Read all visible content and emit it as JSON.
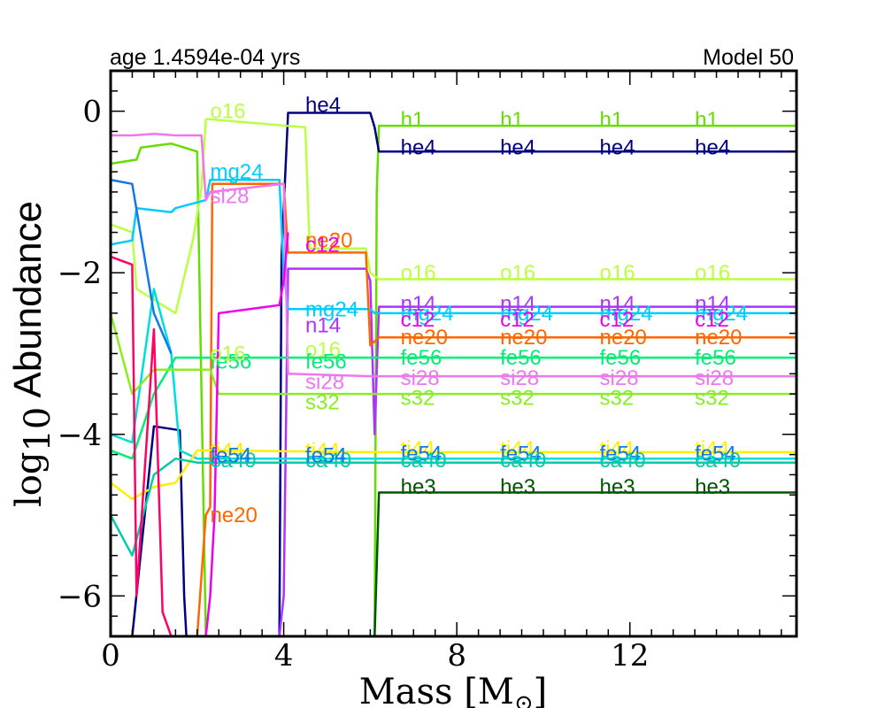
{
  "header": {
    "left": "age 1.4594e-04 yrs",
    "right": "Model 50"
  },
  "chart_data": {
    "type": "line",
    "xlabel": "Mass [M",
    "xlabel_sub": "⊙",
    "xlabel_close": "]",
    "ylabel_prefix": "log",
    "ylabel_sub": "10",
    "ylabel_word": "Abundance",
    "xlim": [
      0,
      15.85
    ],
    "ylim": [
      -6.5,
      0.5
    ],
    "xticks": [
      0,
      4,
      8,
      12
    ],
    "xtick_labels": [
      "0",
      "4",
      "8",
      "12"
    ],
    "yticks": [
      0,
      -2,
      -4,
      -6
    ],
    "ytick_labels": [
      "0",
      "−2",
      "−4",
      "−6"
    ],
    "grid": false,
    "label_positions": [
      6.7,
      9.0,
      11.3,
      13.5
    ],
    "series": [
      {
        "name": "h1",
        "color": "#66dd00",
        "x": [
          0.0,
          0.6,
          0.7,
          1.4,
          2.0,
          2.2,
          2.5,
          3.9,
          4.0,
          6.0,
          6.1,
          6.15,
          6.2,
          15.85
        ],
        "y": [
          -0.65,
          -0.6,
          -0.45,
          -0.4,
          -0.5,
          -6.5,
          -6.5,
          -6.5,
          -6.5,
          -6.5,
          -6.5,
          -1.0,
          -0.18,
          -0.18
        ]
      },
      {
        "name": "he4",
        "color": "#000080",
        "x": [
          0.0,
          0.5,
          1.0,
          1.6,
          1.7,
          1.75,
          3.8,
          3.9,
          3.95,
          4.1,
          5.0,
          6.0,
          6.1,
          6.2,
          15.85
        ],
        "y": [
          -6.5,
          -6.5,
          -3.9,
          -3.95,
          -6.0,
          -6.5,
          -6.5,
          -6.5,
          -1.8,
          -0.02,
          -0.02,
          -0.02,
          -0.2,
          -0.5,
          -0.5
        ]
      },
      {
        "name": "o16",
        "color": "#bbff44",
        "x": [
          0.0,
          0.5,
          0.6,
          1.5,
          1.9,
          2.1,
          2.2,
          2.3,
          4.5,
          4.6,
          5.9,
          6.0,
          6.2,
          15.85
        ],
        "y": [
          -1.4,
          -1.5,
          -2.2,
          -2.5,
          -1.6,
          -0.95,
          -0.1,
          -0.1,
          -0.2,
          -1.7,
          -1.7,
          -2.0,
          -2.08,
          -2.08
        ]
      },
      {
        "name": "n14",
        "color": "#aa33ff",
        "x": [
          0.0,
          3.9,
          4.0,
          4.1,
          5.9,
          6.0,
          6.1,
          6.2,
          15.85
        ],
        "y": [
          -6.5,
          -6.5,
          -6.0,
          -1.95,
          -1.95,
          -2.1,
          -4.0,
          -2.42,
          -2.42
        ]
      },
      {
        "name": "mg24",
        "color": "#00ccff",
        "x": [
          0.0,
          0.5,
          0.6,
          1.4,
          1.5,
          2.2,
          2.3,
          3.9,
          4.0,
          4.1,
          6.0,
          6.1,
          15.85
        ],
        "y": [
          -1.65,
          -1.6,
          -1.2,
          -1.25,
          -1.2,
          -1.1,
          -0.85,
          -0.85,
          -2.0,
          -2.45,
          -2.45,
          -2.5,
          -2.5
        ]
      },
      {
        "name": "c12",
        "color": "#00dddd",
        "x": [
          0.0,
          0.5,
          1.0,
          1.4,
          1.6,
          2.0,
          2.3,
          6.0,
          6.2,
          15.85
        ],
        "y": [
          -4.0,
          -4.1,
          -2.2,
          -3.0,
          -4.2,
          -4.3,
          -4.3,
          -4.3,
          -4.3,
          -4.3
        ]
      },
      {
        "name": "ne20",
        "color": "#ff6600",
        "x": [
          0.0,
          0.7,
          1.0,
          1.5,
          2.0,
          2.2,
          2.3,
          2.35,
          2.4,
          4.0,
          4.1,
          5.9,
          6.0,
          6.2,
          15.85
        ],
        "y": [
          -6.5,
          -6.5,
          -6.5,
          -6.5,
          -6.5,
          -5.0,
          -4.9,
          -0.9,
          -0.9,
          -0.9,
          -1.75,
          -1.75,
          -2.9,
          -2.8,
          -2.8
        ]
      },
      {
        "name": "fe56",
        "color": "#00ee77",
        "x": [
          0.0,
          0.5,
          1.0,
          1.5,
          2.0,
          6.0,
          6.2,
          15.85
        ],
        "y": [
          -4.2,
          -4.3,
          -3.5,
          -3.05,
          -3.05,
          -3.05,
          -3.05,
          -3.05
        ]
      },
      {
        "name": "si28",
        "color": "#ee77ee",
        "x": [
          0.0,
          0.5,
          1.0,
          1.5,
          2.1,
          2.2,
          2.3,
          4.0,
          4.1,
          6.0,
          6.2,
          15.85
        ],
        "y": [
          -0.3,
          -0.3,
          -0.28,
          -0.3,
          -0.3,
          -1.1,
          -1.0,
          -0.9,
          -3.25,
          -3.28,
          -3.28,
          -3.28
        ]
      },
      {
        "name": "s32",
        "color": "#88ee22",
        "x": [
          0.0,
          0.5,
          1.0,
          1.5,
          2.0,
          2.3,
          2.5,
          6.0,
          6.2,
          15.85
        ],
        "y": [
          -2.5,
          -3.5,
          -3.2,
          -3.2,
          -3.2,
          -3.2,
          -3.5,
          -3.5,
          -3.5,
          -3.5
        ]
      },
      {
        "name": "ti44",
        "color": "#ffee00",
        "x": [
          0.0,
          0.5,
          1.0,
          1.5,
          2.0,
          2.3,
          6.0,
          6.2,
          15.85
        ],
        "y": [
          -4.6,
          -4.8,
          -4.65,
          -4.6,
          -4.2,
          -4.2,
          -4.22,
          -4.22,
          -4.22
        ]
      },
      {
        "name": "ca40",
        "color": "#00ccaa",
        "x": [
          0.0,
          0.5,
          1.0,
          1.5,
          2.0,
          2.3,
          6.0,
          6.2,
          15.85
        ],
        "y": [
          -5.0,
          -5.5,
          -4.5,
          -4.3,
          -4.35,
          -4.35,
          -4.35,
          -4.35,
          -4.35
        ]
      },
      {
        "name": "he3",
        "color": "#005500",
        "x": [
          0.0,
          6.1,
          6.2,
          15.85
        ],
        "y": [
          -6.5,
          -6.5,
          -4.72,
          -4.72
        ]
      },
      {
        "name": "",
        "color": "#1177ee",
        "x": [
          0.0,
          0.5,
          1.0,
          1.4
        ],
        "y": [
          -0.85,
          -0.9,
          -2.5,
          -3.0
        ]
      },
      {
        "name": "",
        "color": "#ff0066",
        "x": [
          0.0,
          0.5,
          0.6,
          1.0,
          1.2,
          1.4
        ],
        "y": [
          -1.8,
          -1.9,
          -6.0,
          -2.7,
          -6.2,
          -6.5
        ]
      },
      {
        "name": "",
        "color": "#ee00ee",
        "x": [
          0.0,
          2.2,
          2.3,
          2.4,
          2.5,
          3.9,
          4.0,
          4.1
        ],
        "y": [
          -6.5,
          -6.5,
          -6.0,
          -5.0,
          -2.5,
          -2.4,
          -2.1,
          -1.5
        ]
      }
    ],
    "labels_top": [
      {
        "text": "o16",
        "x": 2.3,
        "y": 0.0,
        "color": "#bbff44"
      },
      {
        "text": "he4",
        "x": 4.5,
        "y": 0.08,
        "color": "#000080"
      },
      {
        "text": "mg24",
        "x": 2.3,
        "y": -0.75,
        "color": "#00ccff"
      },
      {
        "text": "si28",
        "x": 2.3,
        "y": -1.05,
        "color": "#ee77ee"
      },
      {
        "text": "ne20",
        "x": 4.5,
        "y": -1.6,
        "color": "#ff6600"
      },
      {
        "text": "c12",
        "x": 4.5,
        "y": -1.65,
        "color": "#ee00ee"
      },
      {
        "text": "mg24",
        "x": 4.5,
        "y": -2.45,
        "color": "#00ccff"
      },
      {
        "text": "n14",
        "x": 4.5,
        "y": -2.65,
        "color": "#aa33ff"
      },
      {
        "text": "o16",
        "x": 4.5,
        "y": -2.95,
        "color": "#bbff44"
      },
      {
        "text": "fe56",
        "x": 4.5,
        "y": -3.1,
        "color": "#00ee77"
      },
      {
        "text": "si28",
        "x": 4.5,
        "y": -3.35,
        "color": "#ee77ee"
      },
      {
        "text": "s32",
        "x": 4.5,
        "y": -3.6,
        "color": "#88ee22"
      },
      {
        "text": "fe56",
        "x": 2.3,
        "y": -3.1,
        "color": "#00ee77"
      },
      {
        "text": "o16",
        "x": 2.3,
        "y": -3.0,
        "color": "#bbff44"
      },
      {
        "text": "ti44",
        "x": 2.3,
        "y": -4.2,
        "color": "#ffee00"
      },
      {
        "text": "ca40",
        "x": 2.3,
        "y": -4.32,
        "color": "#00ccaa"
      },
      {
        "text": "fe54",
        "x": 2.3,
        "y": -4.26,
        "color": "#1177ee"
      },
      {
        "text": "ti44",
        "x": 4.5,
        "y": -4.2,
        "color": "#ffee00"
      },
      {
        "text": "ca40",
        "x": 4.5,
        "y": -4.32,
        "color": "#00ccaa"
      },
      {
        "text": "fe54",
        "x": 4.5,
        "y": -4.26,
        "color": "#1177ee"
      },
      {
        "text": "ne20",
        "x": 2.3,
        "y": -5.0,
        "color": "#ff6600"
      }
    ],
    "repeat_labels": [
      {
        "text": "h1",
        "y": -0.1,
        "color": "#66dd00"
      },
      {
        "text": "he4",
        "y": -0.45,
        "color": "#000080"
      },
      {
        "text": "o16",
        "y": -2.0,
        "color": "#bbff44"
      },
      {
        "text": "mg24",
        "y": -2.5,
        "color": "#00ccff"
      },
      {
        "text": "n14",
        "y": -2.38,
        "color": "#aa33ff"
      },
      {
        "text": "c12",
        "y": -2.58,
        "color": "#ee00ee"
      },
      {
        "text": "ne20",
        "y": -2.8,
        "color": "#ff6600"
      },
      {
        "text": "fe56",
        "y": -3.05,
        "color": "#00ee77"
      },
      {
        "text": "si28",
        "y": -3.3,
        "color": "#ee77ee"
      },
      {
        "text": "s32",
        "y": -3.55,
        "color": "#88ee22"
      },
      {
        "text": "ti44",
        "y": -4.18,
        "color": "#ffee00"
      },
      {
        "text": "fe54",
        "y": -4.24,
        "color": "#1177ee"
      },
      {
        "text": "ca40",
        "y": -4.32,
        "color": "#00ccaa"
      },
      {
        "text": "he3",
        "y": -4.65,
        "color": "#005500"
      }
    ]
  }
}
